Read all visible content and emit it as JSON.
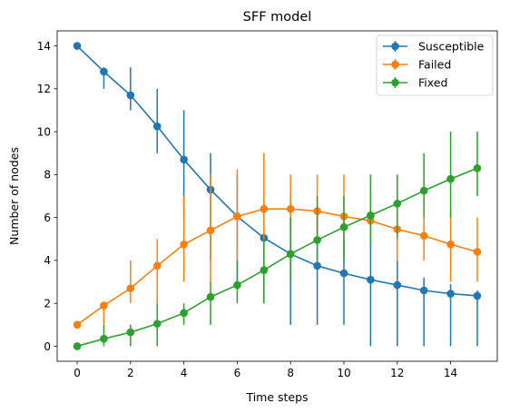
{
  "chart_data": {
    "type": "line",
    "title": "SFF model",
    "xlabel": "Time steps",
    "ylabel": "Number of nodes",
    "xlim": [
      -0.75,
      15.75
    ],
    "ylim": [
      -0.7,
      14.7
    ],
    "xticks": [
      0,
      2,
      4,
      6,
      8,
      10,
      12,
      14
    ],
    "yticks": [
      0,
      2,
      4,
      6,
      8,
      10,
      12,
      14
    ],
    "grid": false,
    "legend_position": "top-right",
    "x": [
      0,
      1,
      2,
      3,
      4,
      5,
      6,
      7,
      8,
      9,
      10,
      11,
      12,
      13,
      14,
      15
    ],
    "series": [
      {
        "name": "Susceptible",
        "color": "#1f77b4",
        "values": [
          14,
          12.8,
          11.7,
          10.25,
          8.7,
          7.3,
          6.05,
          5.05,
          4.3,
          3.75,
          3.4,
          3.1,
          2.85,
          2.6,
          2.45,
          2.35
        ],
        "err_low": [
          14,
          12,
          11,
          9,
          6,
          4,
          3,
          2,
          1,
          1,
          1,
          0,
          0,
          0,
          0,
          0
        ],
        "err_high": [
          14,
          13,
          13,
          12,
          11,
          9,
          8,
          7,
          7,
          6,
          5,
          5,
          4,
          3.2,
          2.9,
          2.6
        ]
      },
      {
        "name": "Failed",
        "color": "#ff7f0e",
        "values": [
          1,
          1.9,
          2.7,
          3.75,
          4.75,
          5.4,
          6.05,
          6.4,
          6.4,
          6.3,
          6.05,
          5.85,
          5.45,
          5.15,
          4.75,
          4.4
        ],
        "err_low": [
          1,
          1,
          2,
          2,
          3,
          3,
          4,
          4,
          5,
          5,
          5,
          5,
          4,
          4,
          3,
          3
        ],
        "err_high": [
          1,
          2,
          4,
          5,
          7,
          8,
          8.25,
          9,
          8,
          8,
          8,
          7,
          7,
          6,
          6.25,
          6
        ]
      },
      {
        "name": "Fixed",
        "color": "#2ca02c",
        "values": [
          0,
          0.35,
          0.65,
          1.05,
          1.55,
          2.3,
          2.85,
          3.55,
          4.3,
          4.95,
          5.55,
          6.1,
          6.65,
          7.25,
          7.8,
          8.3
        ],
        "err_low": [
          0,
          0,
          0,
          0,
          1,
          1,
          2,
          2,
          3,
          4,
          4,
          4.75,
          5,
          6,
          6,
          7
        ],
        "err_high": [
          0,
          1,
          1,
          2,
          2,
          3,
          4,
          5,
          6,
          7,
          7,
          8,
          8,
          9,
          10,
          10
        ]
      }
    ]
  }
}
